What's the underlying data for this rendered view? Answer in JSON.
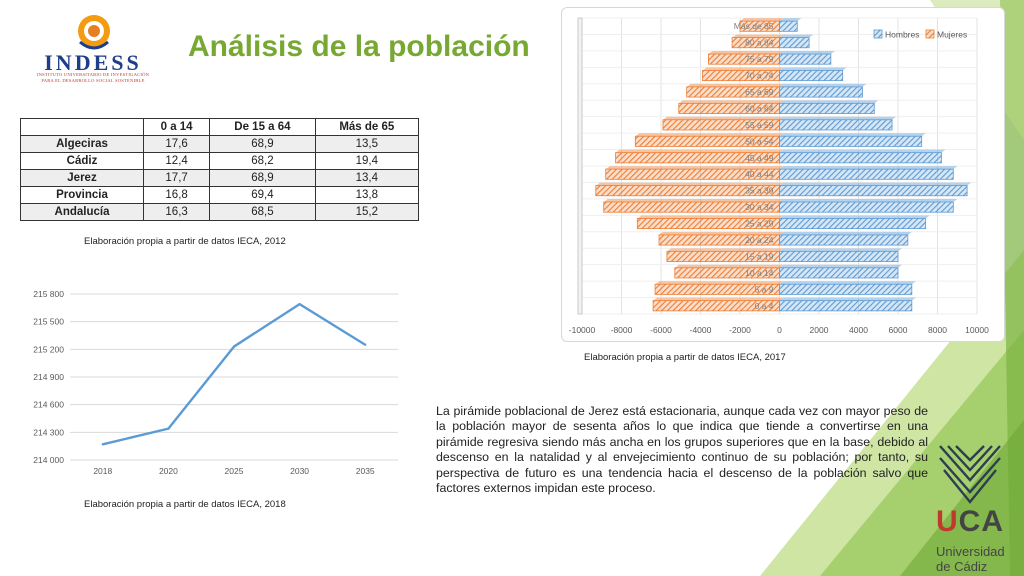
{
  "slide": {
    "title": "Análisis de la población",
    "logo_text": "INDESS",
    "logo_subtitle_1": "INSTITUTO UNIVERSITARIO DE INVESTIGACIÓN",
    "logo_subtitle_2": "PARA EL DESARROLLO SOCIAL SOSTENIBLE",
    "table_source": "Elaboración propia a partir de datos IECA, 2012",
    "line_source": "Elaboración propia a partir de datos IECA, 2018",
    "pyramid_source": "Elaboración propia a partir de datos IECA, 2017",
    "paragraph": "La pirámide poblacional de Jerez está estacionaria, aunque cada vez con mayor peso de la población mayor de sesenta años lo que indica que tiende a convertirse en una pirámide regresiva siendo más ancha en los grupos superiores que en la base, debido al descenso en la natalidad y al envejecimiento continuo de su población; por tanto, su perspectiva de futuro es una tendencia hacia el descenso de la población salvo que factores externos impidan este proceso.",
    "uca_logo_text": "UCA",
    "uca_name_1": "Universidad",
    "uca_name_2": "de Cádiz"
  },
  "colors": {
    "title_green": "#76a832",
    "line_blue": "#5b9bd5",
    "hombres_blue": "#5b9bd5",
    "mujeres_orange": "#ed7d31",
    "uca_red": "#c0392b",
    "indess_blue": "#1f3e8a",
    "indess_orange": "#f39c12"
  },
  "chart_data": [
    {
      "type": "table",
      "columns": [
        "",
        "0 a 14",
        "De 15 a 64",
        "Más de 65"
      ],
      "rows": [
        [
          "Algeciras",
          "17,6",
          "68,9",
          "13,5"
        ],
        [
          "Cádiz",
          "12,4",
          "68,2",
          "19,4"
        ],
        [
          "Jerez",
          "17,7",
          "68,9",
          "13,4"
        ],
        [
          "Provincia",
          "16,8",
          "69,4",
          "13,8"
        ],
        [
          "Andalucía",
          "16,3",
          "68,5",
          "15,2"
        ]
      ]
    },
    {
      "type": "line",
      "x": [
        "2018",
        "2020",
        "2025",
        "2030",
        "2035"
      ],
      "series": [
        {
          "values": [
            214170,
            214340,
            215230,
            215690,
            215250
          ]
        }
      ],
      "ylim": [
        214000,
        215800
      ],
      "yticks": [
        214000,
        214300,
        214600,
        214900,
        215200,
        215500,
        215800
      ],
      "ytick_labels": [
        "214 000",
        "214 300",
        "214 600",
        "214 900",
        "215 200",
        "215 500",
        "215 800"
      ],
      "grid": true
    },
    {
      "type": "bar",
      "orientation": "horizontal",
      "categories": [
        "0 a 4",
        "5 a 9",
        "10 a 14",
        "15 a 19",
        "20 a 24",
        "25 a 29",
        "30 a 34",
        "35 a 39",
        "40 a 44",
        "45 a 49",
        "50 a 54",
        "55 a 59",
        "60 a 64",
        "65 a 69",
        "70 a 74",
        "75 a 79",
        "80 a 84",
        "Más de 85"
      ],
      "series": [
        {
          "name": "Hombres",
          "values": [
            6700,
            6700,
            6000,
            6000,
            6500,
            7400,
            8800,
            9500,
            8800,
            8200,
            7200,
            5700,
            4800,
            4200,
            3200,
            2600,
            1500,
            900
          ]
        },
        {
          "name": "Mujeres",
          "values": [
            -6400,
            -6300,
            -5300,
            -5700,
            -6100,
            -7200,
            -8900,
            -9300,
            -8800,
            -8300,
            -7300,
            -5900,
            -5100,
            -4700,
            -3900,
            -3600,
            -2400,
            -2000
          ]
        }
      ],
      "xlim": [
        -10000,
        10000
      ],
      "xticks": [
        -10000,
        -8000,
        -6000,
        -4000,
        -2000,
        0,
        2000,
        4000,
        6000,
        8000,
        10000
      ],
      "legend": "top-right",
      "grid": true
    }
  ]
}
